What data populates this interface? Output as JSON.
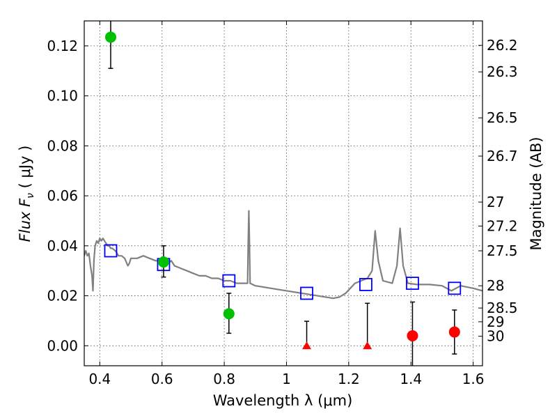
{
  "chart_data": {
    "type": "scatter",
    "xlabel": "Wavelength  λ (μm)",
    "ylabel": "Flux  F",
    "ylabel_sub": "ν",
    "ylabel_unit": "  ( μJy )",
    "y2label": "Magnitude (AB)",
    "xlim": [
      0.35,
      1.63
    ],
    "ylim": [
      -0.008,
      0.13
    ],
    "grid": true,
    "x_ticks": [
      {
        "value": 0.4,
        "label": "0.4"
      },
      {
        "value": 0.6,
        "label": "0.6"
      },
      {
        "value": 0.8,
        "label": "0.8"
      },
      {
        "value": 1.0,
        "label": "1"
      },
      {
        "value": 1.2,
        "label": "1.2"
      },
      {
        "value": 1.4,
        "label": "1.4"
      },
      {
        "value": 1.6,
        "label": "1.6"
      }
    ],
    "y_ticks": [
      {
        "value": 0.0,
        "label": "0.00"
      },
      {
        "value": 0.02,
        "label": "0.02"
      },
      {
        "value": 0.04,
        "label": "0.04"
      },
      {
        "value": 0.06,
        "label": "0.06"
      },
      {
        "value": 0.08,
        "label": "0.08"
      },
      {
        "value": 0.1,
        "label": "0.10"
      },
      {
        "value": 0.12,
        "label": "0.12"
      }
    ],
    "y2_ticks": [
      {
        "flux": 0.1202,
        "label": "26.2"
      },
      {
        "flux": 0.1096,
        "label": "26.3"
      },
      {
        "flux": 0.0912,
        "label": "26.5"
      },
      {
        "flux": 0.0759,
        "label": "26.7"
      },
      {
        "flux": 0.0575,
        "label": "27"
      },
      {
        "flux": 0.0479,
        "label": "27.2"
      },
      {
        "flux": 0.038,
        "label": "27.5"
      },
      {
        "flux": 0.024,
        "label": "28"
      },
      {
        "flux": 0.0151,
        "label": "28.5"
      },
      {
        "flux": 0.0096,
        "label": "29"
      },
      {
        "flux": 0.0038,
        "label": "30"
      }
    ],
    "series": [
      {
        "type": "line",
        "color": "#808080",
        "points": [
          [
            0.35,
            0.036
          ],
          [
            0.355,
            0.038
          ],
          [
            0.36,
            0.036
          ],
          [
            0.365,
            0.037
          ],
          [
            0.37,
            0.032
          ],
          [
            0.375,
            0.028
          ],
          [
            0.378,
            0.022
          ],
          [
            0.381,
            0.034
          ],
          [
            0.385,
            0.04
          ],
          [
            0.39,
            0.042
          ],
          [
            0.395,
            0.041
          ],
          [
            0.4,
            0.043
          ],
          [
            0.405,
            0.042
          ],
          [
            0.41,
            0.043
          ],
          [
            0.415,
            0.042
          ],
          [
            0.42,
            0.041
          ],
          [
            0.425,
            0.04
          ],
          [
            0.43,
            0.04
          ],
          [
            0.435,
            0.039
          ],
          [
            0.44,
            0.039
          ],
          [
            0.45,
            0.038
          ],
          [
            0.46,
            0.036
          ],
          [
            0.47,
            0.036
          ],
          [
            0.48,
            0.035
          ],
          [
            0.49,
            0.032
          ],
          [
            0.495,
            0.033
          ],
          [
            0.5,
            0.035
          ],
          [
            0.52,
            0.035
          ],
          [
            0.54,
            0.036
          ],
          [
            0.56,
            0.035
          ],
          [
            0.58,
            0.034
          ],
          [
            0.6,
            0.034
          ],
          [
            0.62,
            0.033
          ],
          [
            0.63,
            0.034
          ],
          [
            0.64,
            0.032
          ],
          [
            0.66,
            0.031
          ],
          [
            0.68,
            0.03
          ],
          [
            0.7,
            0.029
          ],
          [
            0.72,
            0.028
          ],
          [
            0.74,
            0.028
          ],
          [
            0.76,
            0.027
          ],
          [
            0.78,
            0.027
          ],
          [
            0.8,
            0.026
          ],
          [
            0.82,
            0.026
          ],
          [
            0.84,
            0.025
          ],
          [
            0.86,
            0.025
          ],
          [
            0.875,
            0.025
          ],
          [
            0.877,
            0.041
          ],
          [
            0.879,
            0.054
          ],
          [
            0.881,
            0.041
          ],
          [
            0.883,
            0.025
          ],
          [
            0.9,
            0.024
          ],
          [
            0.95,
            0.023
          ],
          [
            1.0,
            0.022
          ],
          [
            1.05,
            0.021
          ],
          [
            1.1,
            0.02
          ],
          [
            1.15,
            0.019
          ],
          [
            1.17,
            0.0195
          ],
          [
            1.19,
            0.021
          ],
          [
            1.22,
            0.025
          ],
          [
            1.24,
            0.026
          ],
          [
            1.26,
            0.027
          ],
          [
            1.275,
            0.03
          ],
          [
            1.285,
            0.046
          ],
          [
            1.295,
            0.034
          ],
          [
            1.31,
            0.026
          ],
          [
            1.34,
            0.025
          ],
          [
            1.355,
            0.032
          ],
          [
            1.365,
            0.047
          ],
          [
            1.375,
            0.032
          ],
          [
            1.39,
            0.025
          ],
          [
            1.42,
            0.0245
          ],
          [
            1.46,
            0.0245
          ],
          [
            1.5,
            0.024
          ],
          [
            1.53,
            0.022
          ],
          [
            1.56,
            0.024
          ],
          [
            1.6,
            0.023
          ],
          [
            1.63,
            0.022
          ]
        ]
      },
      {
        "type": "scatter",
        "marker": "open-square",
        "color": "#0000ff",
        "points": [
          [
            0.435,
            0.038
          ],
          [
            0.605,
            0.0325
          ],
          [
            0.815,
            0.026
          ],
          [
            1.065,
            0.021
          ],
          [
            1.255,
            0.0245
          ],
          [
            1.405,
            0.025
          ],
          [
            1.54,
            0.023
          ]
        ]
      },
      {
        "type": "scatter",
        "marker": "filled-circle",
        "color": "#00c000",
        "points": [
          {
            "x": 0.435,
            "y": 0.1235,
            "err_lo": 0.0125,
            "err_hi": 0.0135
          },
          {
            "x": 0.605,
            "y": 0.0335,
            "err_lo": 0.006,
            "err_hi": 0.0065
          },
          {
            "x": 0.815,
            "y": 0.0128,
            "err_lo": 0.0078,
            "err_hi": 0.0082
          }
        ]
      },
      {
        "type": "scatter",
        "marker": "filled-triangle",
        "color": "#ff0000",
        "points": [
          {
            "x": 1.065,
            "y": 0.0,
            "err_lo": 0.0,
            "err_hi": 0.0098
          },
          {
            "x": 1.26,
            "y": 0.0,
            "err_lo": 0.0,
            "err_hi": 0.017
          }
        ]
      },
      {
        "type": "scatter",
        "marker": "filled-circle",
        "color": "#ff0000",
        "points": [
          {
            "x": 1.405,
            "y": 0.004,
            "err_lo": 0.018,
            "err_hi": 0.0135
          },
          {
            "x": 1.54,
            "y": 0.0055,
            "err_lo": 0.0088,
            "err_hi": 0.0088
          }
        ]
      }
    ]
  }
}
